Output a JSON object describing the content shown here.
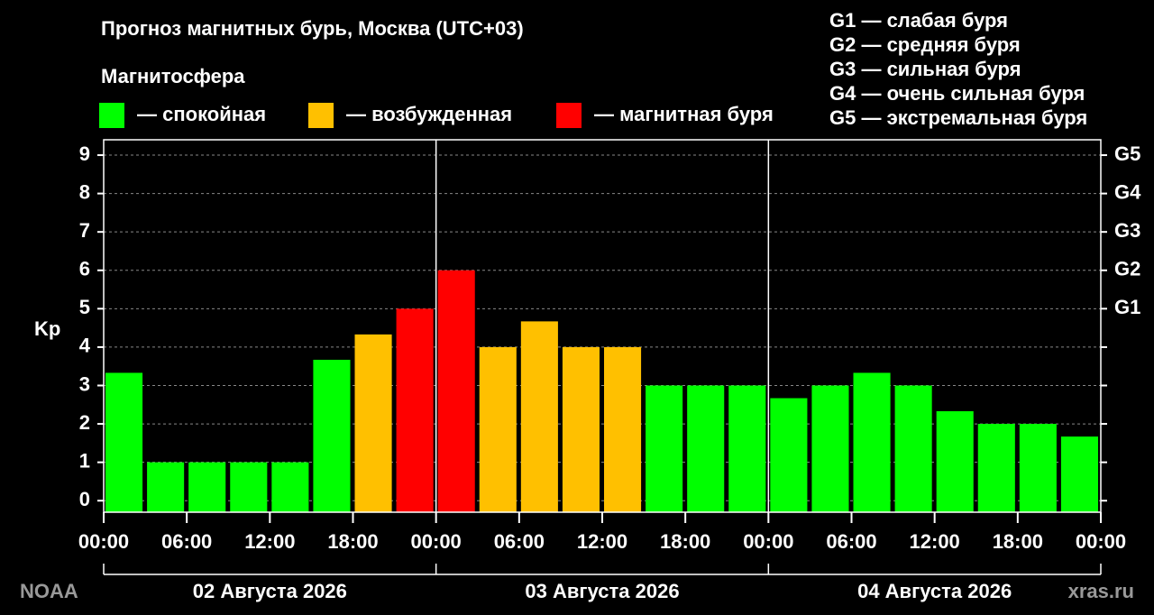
{
  "chart_data": {
    "type": "bar",
    "title": "Прогноз магнитных бурь, Москва (UTC+03)",
    "legend_title": "Магнитосфера",
    "legend": [
      {
        "color": "#00ff00",
        "label": "— спокойная"
      },
      {
        "color": "#ffc000",
        "label": "— возбужденная"
      },
      {
        "color": "#ff0000",
        "label": "— магнитная буря"
      }
    ],
    "scale_notes": [
      "G1 — слабая буря",
      "G2 — средняя буря",
      "G3 — сильная буря",
      "G4 — очень сильная буря",
      "G5 — экстремальная буря"
    ],
    "y_label": "Kp",
    "values": [
      3.33,
      1,
      1,
      1,
      1,
      3.67,
      4.33,
      5,
      6,
      4,
      4.67,
      4,
      4,
      3,
      3,
      3,
      2.67,
      3,
      3.33,
      3,
      2.33,
      2,
      2,
      1.67
    ],
    "colors": [
      "#00ff00",
      "#00ff00",
      "#00ff00",
      "#00ff00",
      "#00ff00",
      "#00ff00",
      "#ffc000",
      "#ff0000",
      "#ff0000",
      "#ffc000",
      "#ffc000",
      "#ffc000",
      "#ffc000",
      "#00ff00",
      "#00ff00",
      "#00ff00",
      "#00ff00",
      "#00ff00",
      "#00ff00",
      "#00ff00",
      "#00ff00",
      "#00ff00",
      "#00ff00",
      "#00ff00"
    ],
    "xlim": [
      0,
      72
    ],
    "xticks": [
      {
        "value": 0,
        "label": "00:00"
      },
      {
        "value": 6,
        "label": "06:00"
      },
      {
        "value": 12,
        "label": "12:00"
      },
      {
        "value": 18,
        "label": "18:00"
      },
      {
        "value": 24,
        "label": "00:00"
      },
      {
        "value": 30,
        "label": "06:00"
      },
      {
        "value": 36,
        "label": "12:00"
      },
      {
        "value": 42,
        "label": "18:00"
      },
      {
        "value": 48,
        "label": "00:00"
      },
      {
        "value": 54,
        "label": "06:00"
      },
      {
        "value": 60,
        "label": "12:00"
      },
      {
        "value": 66,
        "label": "18:00"
      },
      {
        "value": 72,
        "label": "00:00"
      }
    ],
    "days": [
      "02 Августа 2026",
      "03 Августа 2026",
      "04 Августа 2026"
    ],
    "ylim": [
      -0.3,
      9.4
    ],
    "yticks": [
      0,
      1,
      2,
      3,
      4,
      5,
      6,
      7,
      8,
      9
    ],
    "y2lim": [
      -0.3,
      9.4
    ],
    "y2ticks": [
      {
        "value": 5,
        "label": "G1"
      },
      {
        "value": 6,
        "label": "G2"
      },
      {
        "value": 7,
        "label": "G3"
      },
      {
        "value": 8,
        "label": "G4"
      },
      {
        "value": 9,
        "label": "G5"
      }
    ],
    "grid": true,
    "source": "NOAA",
    "site": "xras.ru"
  }
}
